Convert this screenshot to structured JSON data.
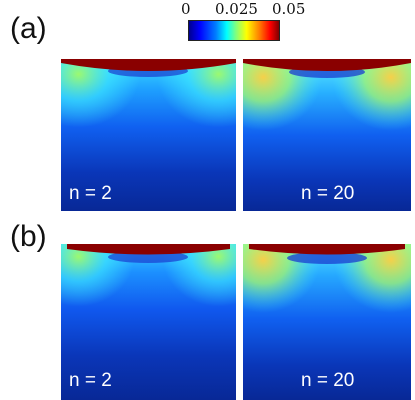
{
  "row_labels": {
    "a": "(a)",
    "b": "(b)"
  },
  "colorbar": {
    "min_label": "0",
    "mid_label": "0.025",
    "max_label": "0.05",
    "colormap": "jet"
  },
  "panels": [
    {
      "row": "a",
      "label": "n = 2"
    },
    {
      "row": "a",
      "label": "n = 20"
    },
    {
      "row": "b",
      "label": "n = 2"
    },
    {
      "row": "b",
      "label": "n = 20"
    }
  ],
  "colors": {
    "deep_blue": "#0a2a9e",
    "mid_blue": "#1a5cff",
    "cyan": "#36c8ff",
    "hot": "#8a0000"
  }
}
